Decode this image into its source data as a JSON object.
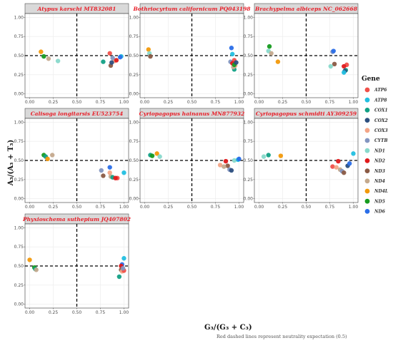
{
  "figure": {
    "xlabel": "G₃/(G₃ + C₃)",
    "ylabel": "A₃/(A₃ + T₃)",
    "caption": "Red dashed lines represent neutrality expectation (0.5)",
    "legend_title": "Gene"
  },
  "genes": [
    {
      "name": "ATP6",
      "color": "#F0504A"
    },
    {
      "name": "ATP8",
      "color": "#22BFE0"
    },
    {
      "name": "COX1",
      "color": "#12A085"
    },
    {
      "name": "COX2",
      "color": "#2C4F7F"
    },
    {
      "name": "COX3",
      "color": "#F3A587"
    },
    {
      "name": "CYTB",
      "color": "#8395C0"
    },
    {
      "name": "ND1",
      "color": "#88D9CB"
    },
    {
      "name": "ND2",
      "color": "#E01A1C"
    },
    {
      "name": "ND3",
      "color": "#8A5A44"
    },
    {
      "name": "ND4",
      "color": "#C4A98D"
    },
    {
      "name": "ND4L",
      "color": "#F2990B"
    },
    {
      "name": "ND5",
      "color": "#169B1F"
    },
    {
      "name": "ND6",
      "color": "#2A6EE8"
    }
  ],
  "chart_data": {
    "type": "scatter",
    "xlim": [
      0,
      1
    ],
    "ylim": [
      0,
      1
    ],
    "x_ticks": [
      "0.00",
      "0.25",
      "0.50",
      "0.75",
      "1.00"
    ],
    "y_ticks": [
      "0.00",
      "0.25",
      "0.50",
      "0.75",
      "1.00"
    ],
    "reference_lines": {
      "x": 0.5,
      "y": 0.5
    },
    "panels": [
      {
        "title": "Atypus karschi MT832081",
        "points": [
          {
            "gene": "ND4L",
            "x": 0.12,
            "y": 0.55
          },
          {
            "gene": "ND5",
            "x": 0.15,
            "y": 0.49
          },
          {
            "gene": "ND4",
            "x": 0.2,
            "y": 0.46
          },
          {
            "gene": "ND1",
            "x": 0.3,
            "y": 0.43
          },
          {
            "gene": "ATP6",
            "x": 0.85,
            "y": 0.53
          },
          {
            "gene": "COX1",
            "x": 0.78,
            "y": 0.42
          },
          {
            "gene": "ND3",
            "x": 0.86,
            "y": 0.37
          },
          {
            "gene": "COX3",
            "x": 0.9,
            "y": 0.43
          },
          {
            "gene": "ATP8",
            "x": 0.97,
            "y": 0.49
          },
          {
            "gene": "ND2",
            "x": 0.92,
            "y": 0.44
          },
          {
            "gene": "CYTB",
            "x": 0.88,
            "y": 0.47
          },
          {
            "gene": "COX2",
            "x": 0.87,
            "y": 0.41
          },
          {
            "gene": "ND6",
            "x": 0.96,
            "y": 0.48
          }
        ]
      },
      {
        "title": "Bothriocyrtum californicum PQ043198",
        "points": [
          {
            "gene": "ND4L",
            "x": 0.04,
            "y": 0.58
          },
          {
            "gene": "ND1",
            "x": 0.05,
            "y": 0.53
          },
          {
            "gene": "ND3",
            "x": 0.06,
            "y": 0.49
          },
          {
            "gene": "ND6",
            "x": 0.92,
            "y": 0.6
          },
          {
            "gene": "ATP8",
            "x": 0.93,
            "y": 0.52
          },
          {
            "gene": "CYTB",
            "x": 0.91,
            "y": 0.42
          },
          {
            "gene": "ATP6",
            "x": 0.95,
            "y": 0.44
          },
          {
            "gene": "ND2",
            "x": 0.93,
            "y": 0.4
          },
          {
            "gene": "COX1",
            "x": 0.95,
            "y": 0.32
          },
          {
            "gene": "COX3",
            "x": 0.96,
            "y": 0.37
          },
          {
            "gene": "ND4",
            "x": 0.94,
            "y": 0.35
          },
          {
            "gene": "ND5",
            "x": 0.95,
            "y": 0.38
          },
          {
            "gene": "COX2",
            "x": 0.97,
            "y": 0.41
          }
        ]
      },
      {
        "title": "Brachypelma albiceps NC_062668",
        "points": [
          {
            "gene": "ND5",
            "x": 0.11,
            "y": 0.62
          },
          {
            "gene": "ND1",
            "x": 0.1,
            "y": 0.56
          },
          {
            "gene": "ND4",
            "x": 0.13,
            "y": 0.53
          },
          {
            "gene": "ND4L",
            "x": 0.2,
            "y": 0.42
          },
          {
            "gene": "CYTB",
            "x": 0.78,
            "y": 0.55
          },
          {
            "gene": "ND6",
            "x": 0.79,
            "y": 0.56
          },
          {
            "gene": "ND3",
            "x": 0.8,
            "y": 0.39
          },
          {
            "gene": "ND1",
            "x": 0.76,
            "y": 0.36
          },
          {
            "gene": "ATP6",
            "x": 0.93,
            "y": 0.38
          },
          {
            "gene": "ND2",
            "x": 0.9,
            "y": 0.36
          },
          {
            "gene": "COX1",
            "x": 0.92,
            "y": 0.31
          },
          {
            "gene": "COX2",
            "x": 0.91,
            "y": 0.3
          },
          {
            "gene": "ATP8",
            "x": 0.9,
            "y": 0.28
          }
        ]
      },
      {
        "title": "Calisoga longitarsis EU523754",
        "points": [
          {
            "gene": "ND5",
            "x": 0.15,
            "y": 0.57
          },
          {
            "gene": "COX1",
            "x": 0.17,
            "y": 0.55
          },
          {
            "gene": "ND4",
            "x": 0.24,
            "y": 0.57
          },
          {
            "gene": "ND4L",
            "x": 0.19,
            "y": 0.52
          },
          {
            "gene": "CYTB",
            "x": 0.76,
            "y": 0.37
          },
          {
            "gene": "ND6",
            "x": 0.85,
            "y": 0.41
          },
          {
            "gene": "ND3",
            "x": 0.78,
            "y": 0.3
          },
          {
            "gene": "COX3",
            "x": 0.85,
            "y": 0.34
          },
          {
            "gene": "ATP8",
            "x": 1.0,
            "y": 0.34
          },
          {
            "gene": "ND4",
            "x": 0.86,
            "y": 0.29
          },
          {
            "gene": "COX1",
            "x": 0.88,
            "y": 0.28
          },
          {
            "gene": "ATP6",
            "x": 0.93,
            "y": 0.27
          },
          {
            "gene": "ND2",
            "x": 0.91,
            "y": 0.27
          }
        ]
      },
      {
        "title": "Cyriopagopus hainanus MN877932",
        "points": [
          {
            "gene": "COX1",
            "x": 0.06,
            "y": 0.57
          },
          {
            "gene": "ND5",
            "x": 0.08,
            "y": 0.56
          },
          {
            "gene": "ND4L",
            "x": 0.13,
            "y": 0.59
          },
          {
            "gene": "ND1",
            "x": 0.16,
            "y": 0.55
          },
          {
            "gene": "ND2",
            "x": 0.86,
            "y": 0.49
          },
          {
            "gene": "COX3",
            "x": 0.8,
            "y": 0.44
          },
          {
            "gene": "ND3",
            "x": 0.88,
            "y": 0.43
          },
          {
            "gene": "ND4",
            "x": 0.84,
            "y": 0.42
          },
          {
            "gene": "CYTB",
            "x": 0.9,
            "y": 0.38
          },
          {
            "gene": "COX2",
            "x": 0.92,
            "y": 0.37
          },
          {
            "gene": "ND1",
            "x": 0.95,
            "y": 0.5
          },
          {
            "gene": "ATP8",
            "x": 0.99,
            "y": 0.51
          },
          {
            "gene": "ND6",
            "x": 1.0,
            "y": 0.52
          }
        ]
      },
      {
        "title": "Cyriopagopus schmidti AY309259",
        "points": [
          {
            "gene": "ND1",
            "x": 0.05,
            "y": 0.55
          },
          {
            "gene": "COX1",
            "x": 0.1,
            "y": 0.57
          },
          {
            "gene": "ND4L",
            "x": 0.23,
            "y": 0.56
          },
          {
            "gene": "ND2",
            "x": 0.84,
            "y": 0.49
          },
          {
            "gene": "ATP6",
            "x": 0.78,
            "y": 0.42
          },
          {
            "gene": "COX3",
            "x": 0.82,
            "y": 0.41
          },
          {
            "gene": "ND4",
            "x": 0.86,
            "y": 0.38
          },
          {
            "gene": "CYTB",
            "x": 0.88,
            "y": 0.36
          },
          {
            "gene": "ND3",
            "x": 0.9,
            "y": 0.34
          },
          {
            "gene": "COX2",
            "x": 0.94,
            "y": 0.43
          },
          {
            "gene": "ND6",
            "x": 0.96,
            "y": 0.46
          },
          {
            "gene": "ATP8",
            "x": 1.0,
            "y": 0.59
          }
        ]
      },
      {
        "title": "Phyxioschema suthepium JQ407802",
        "points": [
          {
            "gene": "ND4L",
            "x": 0.0,
            "y": 0.58
          },
          {
            "gene": "ND5",
            "x": 0.05,
            "y": 0.48
          },
          {
            "gene": "COX1",
            "x": 0.06,
            "y": 0.46
          },
          {
            "gene": "ND4",
            "x": 0.07,
            "y": 0.45
          },
          {
            "gene": "ATP8",
            "x": 1.0,
            "y": 0.6
          },
          {
            "gene": "ND6",
            "x": 0.98,
            "y": 0.52
          },
          {
            "gene": "ND2",
            "x": 0.97,
            "y": 0.5
          },
          {
            "gene": "ND3",
            "x": 0.97,
            "y": 0.45
          },
          {
            "gene": "COX3",
            "x": 0.98,
            "y": 0.43
          },
          {
            "gene": "ATP6",
            "x": 1.0,
            "y": 0.44
          },
          {
            "gene": "COX1",
            "x": 0.95,
            "y": 0.36
          },
          {
            "gene": "CYTB",
            "x": 0.99,
            "y": 0.47
          }
        ]
      }
    ]
  }
}
